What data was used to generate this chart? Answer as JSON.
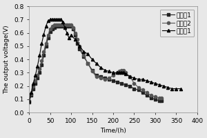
{
  "title": "",
  "xlabel": "Time/(h)",
  "ylabel": "The output voltage(V)",
  "xlim": [
    0,
    400
  ],
  "ylim": [
    0.0,
    0.8
  ],
  "xticks": [
    0,
    50,
    100,
    150,
    200,
    250,
    300,
    350,
    400
  ],
  "yticks": [
    0.0,
    0.1,
    0.2,
    0.3,
    0.4,
    0.5,
    0.6,
    0.7,
    0.8
  ],
  "series1": {
    "x": [
      0,
      5,
      10,
      15,
      20,
      25,
      30,
      35,
      40,
      45,
      50,
      55,
      60,
      65,
      70,
      75,
      80,
      85,
      90,
      95,
      100,
      105,
      110,
      115,
      120,
      130,
      140,
      150,
      160,
      170,
      180,
      190,
      200,
      210,
      220,
      230,
      240,
      250,
      260,
      270,
      280,
      290,
      300,
      310,
      315
    ],
    "y": [
      0.08,
      0.13,
      0.18,
      0.22,
      0.26,
      0.3,
      0.36,
      0.43,
      0.5,
      0.56,
      0.61,
      0.63,
      0.64,
      0.65,
      0.65,
      0.65,
      0.65,
      0.65,
      0.65,
      0.65,
      0.65,
      0.63,
      0.58,
      0.52,
      0.48,
      0.42,
      0.37,
      0.32,
      0.28,
      0.27,
      0.26,
      0.25,
      0.24,
      0.23,
      0.22,
      0.21,
      0.2,
      0.18,
      0.17,
      0.15,
      0.13,
      0.11,
      0.1,
      0.09,
      0.09
    ],
    "color": "#222222",
    "marker": "s",
    "label": "对比例1"
  },
  "series2": {
    "x": [
      0,
      5,
      10,
      15,
      20,
      25,
      30,
      35,
      40,
      45,
      50,
      55,
      60,
      65,
      70,
      75,
      80,
      85,
      90,
      95,
      100,
      105,
      110,
      115,
      120,
      130,
      140,
      150,
      160,
      170,
      180,
      190,
      200,
      210,
      215,
      220,
      225,
      230,
      240,
      250,
      260,
      270,
      280,
      290,
      300,
      310,
      315
    ],
    "y": [
      0.09,
      0.14,
      0.2,
      0.24,
      0.28,
      0.33,
      0.39,
      0.46,
      0.52,
      0.58,
      0.63,
      0.65,
      0.66,
      0.66,
      0.66,
      0.66,
      0.66,
      0.66,
      0.66,
      0.66,
      0.66,
      0.64,
      0.6,
      0.55,
      0.5,
      0.43,
      0.37,
      0.31,
      0.27,
      0.26,
      0.25,
      0.26,
      0.28,
      0.3,
      0.31,
      0.32,
      0.32,
      0.3,
      0.27,
      0.22,
      0.19,
      0.17,
      0.15,
      0.13,
      0.12,
      0.11,
      0.11
    ],
    "color": "#555555",
    "marker": "o",
    "label": "对比例2"
  },
  "series3": {
    "x": [
      0,
      5,
      10,
      15,
      20,
      25,
      30,
      35,
      40,
      45,
      50,
      55,
      60,
      65,
      70,
      75,
      80,
      85,
      90,
      95,
      100,
      110,
      120,
      130,
      140,
      150,
      160,
      170,
      180,
      190,
      200,
      210,
      215,
      220,
      225,
      230,
      240,
      250,
      260,
      270,
      280,
      290,
      300,
      310,
      320,
      330,
      340,
      350,
      360
    ],
    "y": [
      0.09,
      0.15,
      0.22,
      0.28,
      0.35,
      0.43,
      0.52,
      0.59,
      0.65,
      0.69,
      0.7,
      0.7,
      0.7,
      0.7,
      0.7,
      0.7,
      0.68,
      0.64,
      0.6,
      0.56,
      0.58,
      0.55,
      0.5,
      0.46,
      0.44,
      0.4,
      0.37,
      0.34,
      0.32,
      0.31,
      0.3,
      0.3,
      0.3,
      0.3,
      0.3,
      0.29,
      0.27,
      0.26,
      0.25,
      0.25,
      0.24,
      0.23,
      0.22,
      0.21,
      0.2,
      0.19,
      0.18,
      0.18,
      0.18
    ],
    "color": "#000000",
    "marker": "^",
    "label": "实施例1"
  },
  "background_color": "#e8e8e8",
  "plot_bg_color": "#e8e8e8",
  "font_size": 6.5,
  "legend_fontsize": 6.5,
  "linewidth": 0.8,
  "markersize": 3.0
}
